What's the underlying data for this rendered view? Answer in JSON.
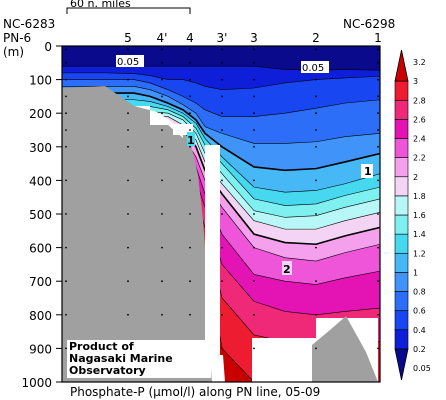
{
  "chart_data": {
    "type": "contour",
    "title": "Phosphate-P (μmol/l) along PN line, 05-09",
    "ylabel": "(m)",
    "ylim": [
      0,
      1000
    ],
    "yticks": [
      "0",
      "100",
      "200",
      "300",
      "400",
      "500",
      "600",
      "700",
      "800",
      "900",
      "1000"
    ],
    "stations": [
      "PN-6",
      "5",
      "4'",
      "4",
      "3'",
      "3",
      "2",
      "1"
    ],
    "station_ids": {
      "left": "NC-6283",
      "right": "NC-6298"
    },
    "scale_bar": "60 n. miles",
    "contour_labels": [
      "0.05",
      "0.05",
      "1",
      "1",
      "2"
    ],
    "colorbar": {
      "levels": [
        "0.05",
        "0.2",
        "0.4",
        "0.6",
        "0.8",
        "1",
        "1.2",
        "1.4",
        "1.6",
        "1.8",
        "2",
        "2.2",
        "2.4",
        "2.6",
        "2.8",
        "3",
        "3.2"
      ],
      "colors": [
        "#0a0a8c",
        "#0f1fd9",
        "#1846f0",
        "#2c6ef7",
        "#3f93f9",
        "#45b8f5",
        "#45d8ee",
        "#7ff0f0",
        "#b8f7f7",
        "#f4d4f4",
        "#f4a0ec",
        "#ee55d8",
        "#e414b4",
        "#f02878",
        "#ee1c30",
        "#c80000"
      ]
    },
    "credit": [
      "Product of",
      "Nagasaki Marine",
      "Observatory"
    ]
  },
  "colors": {
    "seafloor": "#a0a0a0",
    "frame": "#000000"
  }
}
